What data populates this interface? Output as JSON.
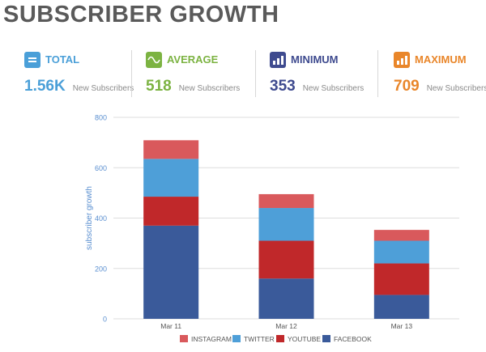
{
  "title": "SUBSCRIBER GROWTH",
  "stats": [
    {
      "label": "TOTAL",
      "value": "1.56K",
      "unit": "New Subscribers",
      "color": "#4a9fd8",
      "icon": "equals-icon"
    },
    {
      "label": "AVERAGE",
      "value": "518",
      "unit": "New Subscribers",
      "color": "#7cb342",
      "icon": "sine-wave-icon"
    },
    {
      "label": "MINIMUM",
      "value": "353",
      "unit": "New Subscribers",
      "color": "#3f4b8f",
      "icon": "bar-chart-icon"
    },
    {
      "label": "MAXIMUM",
      "value": "709",
      "unit": "New Subscribers",
      "color": "#e9862a",
      "icon": "bar-chart-icon"
    }
  ],
  "chart_data": {
    "type": "bar",
    "stacked": true,
    "categories": [
      "Mar 11",
      "Mar 12",
      "Mar 13"
    ],
    "series": [
      {
        "name": "FACEBOOK",
        "color": "#3a5a9a",
        "values": [
          370,
          160,
          95
        ]
      },
      {
        "name": "YOUTUBE",
        "color": "#c0282a",
        "values": [
          115,
          150,
          125
        ]
      },
      {
        "name": "TWITTER",
        "color": "#4e9fd8",
        "values": [
          150,
          130,
          90
        ]
      },
      {
        "name": "INSTAGRAM",
        "color": "#d9595c",
        "values": [
          74,
          55,
          43
        ]
      }
    ],
    "legend_order": [
      "INSTAGRAM",
      "TWITTER",
      "YOUTUBE",
      "FACEBOOK"
    ],
    "ylabel": "subscriber growth",
    "xlabel": "",
    "ylim": [
      0,
      800
    ],
    "yticks": [
      0,
      200,
      400,
      600,
      800
    ],
    "grid": true,
    "legend_position": "bottom"
  }
}
